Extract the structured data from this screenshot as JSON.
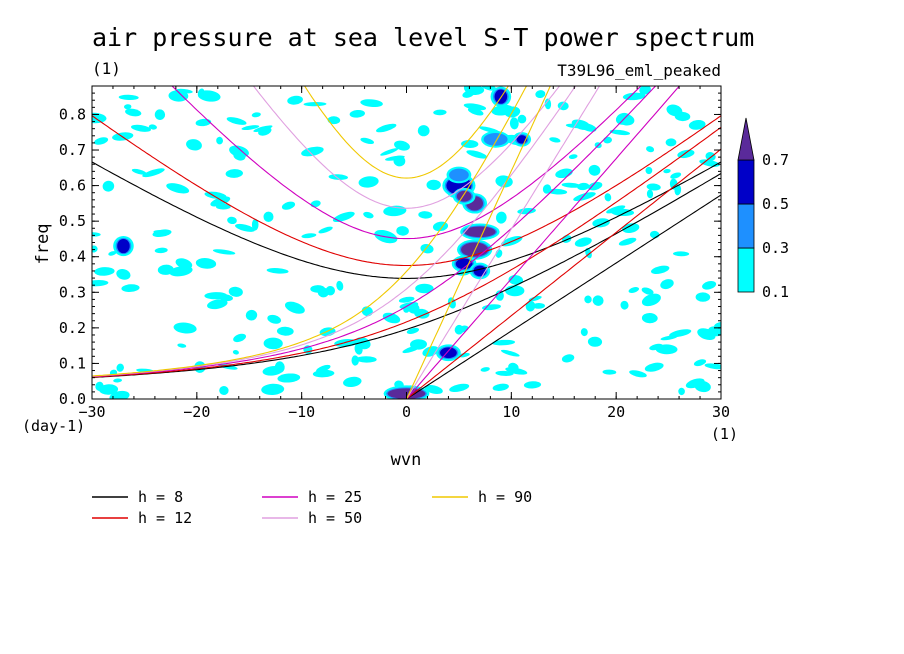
{
  "chart_data": {
    "type": "contour",
    "title": "air pressure at sea level S-T power spectrum",
    "subtitle_left": "(1)",
    "subtitle_right": "T39L96_eml_peaked",
    "xlabel": "wvn",
    "ylabel": "freq",
    "x_unit": "(1)",
    "y_unit": "(day-1)",
    "xlim": [
      -30,
      30
    ],
    "ylim": [
      0,
      0.88
    ],
    "xticks": [
      -30,
      -20,
      -10,
      0,
      10,
      20,
      30
    ],
    "yticks": [
      0.0,
      0.1,
      0.2,
      0.3,
      0.4,
      0.5,
      0.6,
      0.7,
      0.8
    ],
    "ytick_labels": [
      "0.0",
      "0.1",
      "0.2",
      "0.3",
      "0.4",
      "0.5",
      "0.6",
      "0.7",
      "0.8"
    ],
    "colorbar": {
      "levels": [
        0.1,
        0.3,
        0.5,
        0.7
      ],
      "labels": [
        "0.1",
        "0.3",
        "0.5",
        "0.7"
      ],
      "colors": [
        "#00ffff",
        "#1e90ff",
        "#0000c8",
        "#5a2a9a"
      ]
    },
    "dispersion_curves": [
      {
        "label": "h =  8",
        "h": 8,
        "color": "#000000",
        "curves": [
          "kelvin",
          "mrg",
          "ig1"
        ]
      },
      {
        "label": "h = 12",
        "h": 12,
        "color": "#e00000",
        "curves": [
          "kelvin",
          "mrg",
          "ig1"
        ]
      },
      {
        "label": "h = 25",
        "h": 25,
        "color": "#d000c0",
        "curves": [
          "kelvin",
          "mrg",
          "ig1"
        ]
      },
      {
        "label": "h = 50",
        "h": 50,
        "color": "#e0a0e0",
        "curves": [
          "kelvin",
          "mrg",
          "ig1"
        ]
      },
      {
        "label": "h = 90",
        "h": 90,
        "color": "#f0c800",
        "curves": [
          "kelvin",
          "mrg",
          "ig1"
        ]
      }
    ],
    "power_patches": [
      {
        "x": 0,
        "y": 0.015,
        "rx": 1.8,
        "ry": 0.015,
        "level": 0.7
      },
      {
        "x": -27,
        "y": 0.43,
        "rx": 0.6,
        "ry": 0.02,
        "level": 0.5
      },
      {
        "x": 5,
        "y": 0.6,
        "rx": 1.2,
        "ry": 0.025,
        "level": 0.5
      },
      {
        "x": 6.5,
        "y": 0.55,
        "rx": 0.8,
        "ry": 0.02,
        "level": 0.7
      },
      {
        "x": 7,
        "y": 0.47,
        "rx": 1.5,
        "ry": 0.015,
        "level": 0.7
      },
      {
        "x": 6.5,
        "y": 0.42,
        "rx": 1.3,
        "ry": 0.02,
        "level": 0.7
      },
      {
        "x": 5.5,
        "y": 0.38,
        "rx": 0.8,
        "ry": 0.015,
        "level": 0.5
      },
      {
        "x": 7,
        "y": 0.36,
        "rx": 0.6,
        "ry": 0.015,
        "level": 0.5
      },
      {
        "x": 4,
        "y": 0.13,
        "rx": 0.8,
        "ry": 0.015,
        "level": 0.5
      },
      {
        "x": 9,
        "y": 0.85,
        "rx": 0.6,
        "ry": 0.02,
        "level": 0.5
      },
      {
        "x": 8.5,
        "y": 0.73,
        "rx": 1.0,
        "ry": 0.015,
        "level": 0.3
      },
      {
        "x": 5,
        "y": 0.63,
        "rx": 0.8,
        "ry": 0.015,
        "level": 0.3
      },
      {
        "x": 11,
        "y": 0.73,
        "rx": 0.5,
        "ry": 0.012,
        "level": 0.5
      },
      {
        "x": 5.5,
        "y": 0.57,
        "rx": 0.7,
        "ry": 0.015,
        "level": 0.7
      }
    ]
  },
  "legend": [
    {
      "label": "h =  8",
      "color": "#000000"
    },
    {
      "label": "h = 12",
      "color": "#e00000"
    },
    {
      "label": "h = 25",
      "color": "#d000c0"
    },
    {
      "label": "h = 50",
      "color": "#e0a0e0"
    },
    {
      "label": "h = 90",
      "color": "#f0c800"
    }
  ]
}
